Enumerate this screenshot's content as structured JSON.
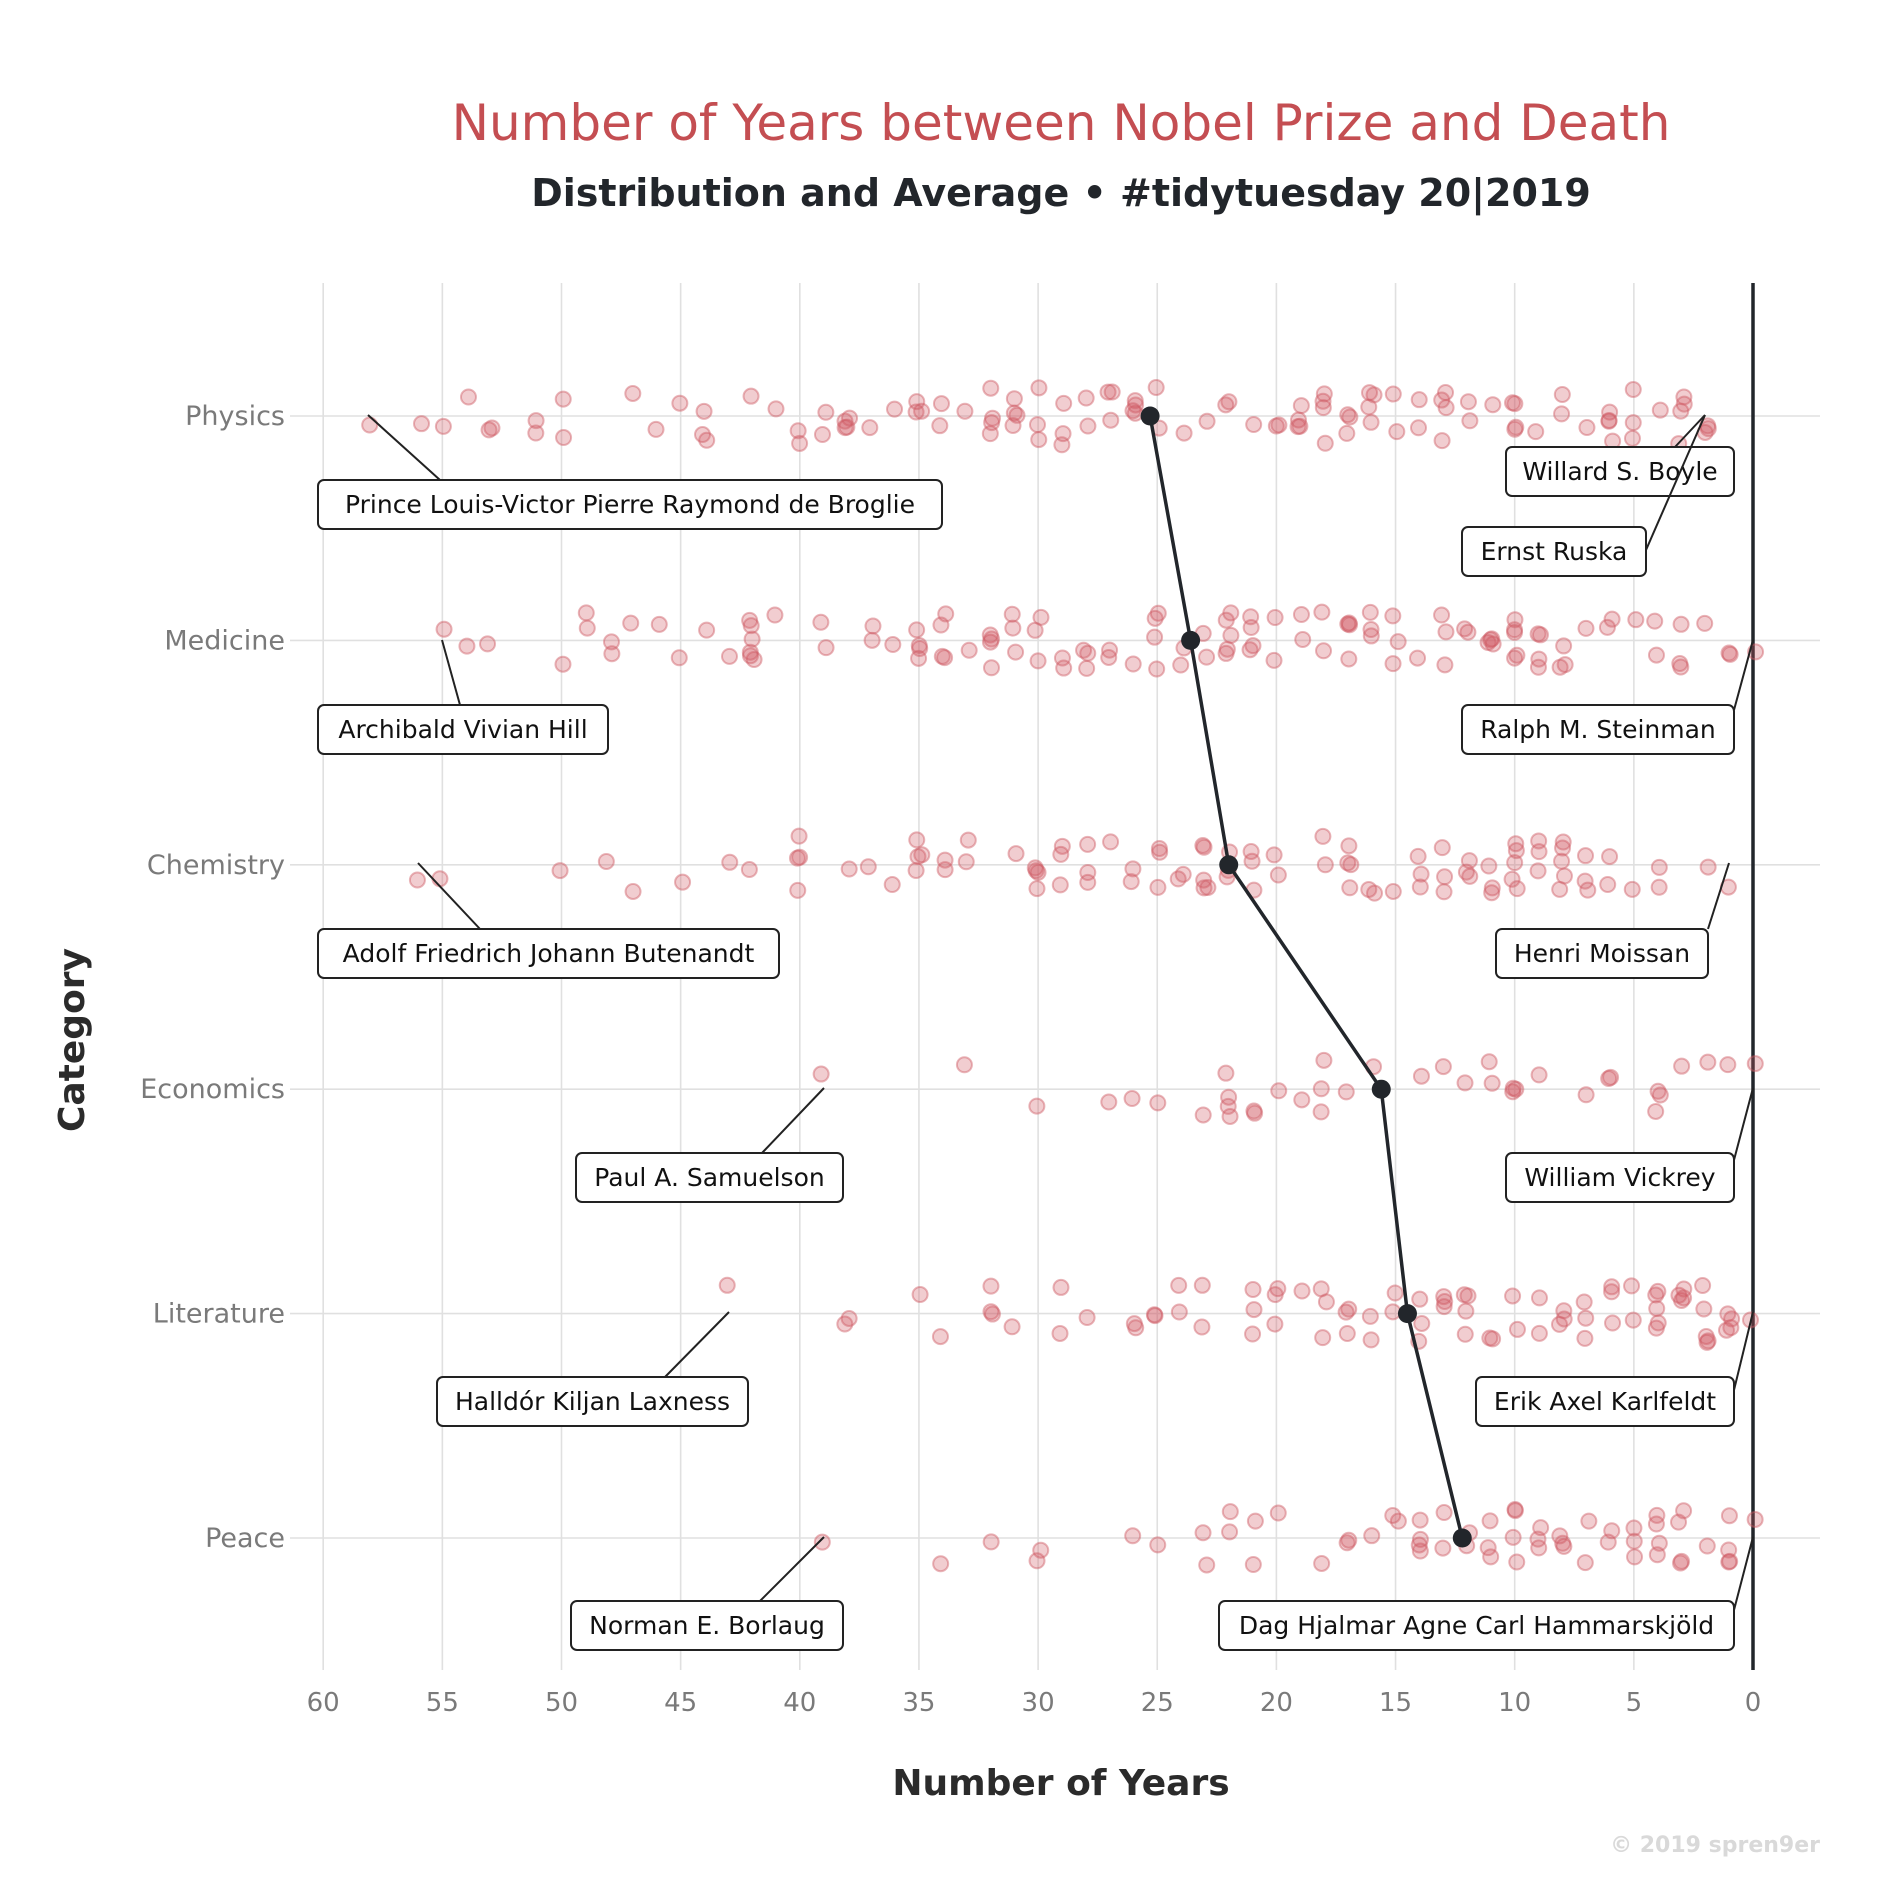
{
  "chart_data": {
    "type": "scatter",
    "title": "Number of Years between Nobel Prize and Death",
    "subtitle": "Distribution and Average • #tidytuesday 20|2019",
    "xlabel": "Number of Years",
    "ylabel": "Category",
    "caption": "© 2019 spren9er",
    "x_reversed": true,
    "xlim": [
      61,
      -3
    ],
    "x_ticks": [
      60,
      55,
      50,
      45,
      40,
      35,
      30,
      25,
      20,
      15,
      10,
      5,
      0
    ],
    "categories": [
      "Physics",
      "Medicine",
      "Chemistry",
      "Economics",
      "Literature",
      "Peace"
    ],
    "grid": true,
    "colors": {
      "points": "#cf5a64",
      "average": "#22262b",
      "labels": "#222222"
    },
    "average": {
      "Physics": 25.3,
      "Medicine": 23.6,
      "Chemistry": 22,
      "Economics": 15.6,
      "Literature": 14.5,
      "Peace": 12.2
    },
    "points": {
      "Physics": [
        58,
        56,
        55,
        54,
        53,
        53,
        51,
        51,
        50,
        50,
        47,
        46,
        45,
        44,
        44,
        44,
        42,
        41,
        40,
        40,
        39,
        39,
        38,
        38,
        38,
        38,
        37,
        36,
        35,
        35,
        35,
        34,
        34,
        33,
        32,
        32,
        32,
        32,
        31,
        31,
        31,
        31,
        30,
        30,
        30,
        29,
        29,
        29,
        28,
        28,
        27,
        27,
        27,
        26,
        26,
        26,
        26,
        25,
        25,
        24,
        23,
        22,
        22,
        21,
        20,
        20,
        19,
        19,
        19,
        19,
        18,
        18,
        18,
        18,
        17,
        17,
        17,
        16,
        16,
        16,
        16,
        15,
        15,
        14,
        14,
        13,
        13,
        13,
        13,
        12,
        12,
        11,
        10,
        10,
        10,
        10,
        9,
        8,
        8,
        7,
        6,
        6,
        6,
        6,
        5,
        5,
        5,
        4,
        3,
        3,
        3,
        3,
        2,
        2,
        2
      ],
      "Medicine": [
        55,
        54,
        53,
        50,
        49,
        49,
        48,
        48,
        47,
        46,
        45,
        44,
        43,
        42,
        42,
        42,
        42,
        42,
        42,
        41,
        39,
        39,
        37,
        37,
        36,
        35,
        35,
        35,
        35,
        34,
        34,
        34,
        34,
        33,
        32,
        32,
        32,
        32,
        31,
        31,
        31,
        30,
        30,
        30,
        29,
        29,
        28,
        28,
        28,
        27,
        27,
        26,
        25,
        25,
        25,
        25,
        24,
        24,
        23,
        23,
        22,
        22,
        22,
        22,
        22,
        21,
        21,
        21,
        21,
        20,
        20,
        19,
        19,
        18,
        18,
        17,
        17,
        17,
        17,
        16,
        16,
        16,
        15,
        15,
        15,
        14,
        13,
        13,
        13,
        12,
        12,
        11,
        11,
        11,
        11,
        10,
        10,
        10,
        10,
        10,
        9,
        9,
        9,
        9,
        8,
        8,
        8,
        7,
        6,
        6,
        5,
        4,
        4,
        3,
        3,
        3,
        2,
        1,
        1,
        0
      ],
      "Chemistry": [
        56,
        55,
        50,
        48,
        47,
        45,
        43,
        42,
        40,
        40,
        40,
        40,
        38,
        37,
        36,
        35,
        35,
        35,
        35,
        34,
        34,
        33,
        33,
        31,
        30,
        30,
        30,
        30,
        29,
        29,
        29,
        28,
        28,
        28,
        27,
        26,
        26,
        25,
        25,
        25,
        24,
        24,
        23,
        23,
        23,
        23,
        23,
        22,
        22,
        22,
        21,
        21,
        21,
        20,
        20,
        18,
        18,
        17,
        17,
        17,
        17,
        16,
        16,
        15,
        14,
        14,
        14,
        13,
        13,
        13,
        12,
        12,
        12,
        11,
        11,
        11,
        10,
        10,
        10,
        10,
        10,
        9,
        9,
        9,
        8,
        8,
        8,
        8,
        8,
        7,
        7,
        7,
        6,
        6,
        5,
        4,
        4,
        2,
        1
      ],
      "Economics": [
        39,
        33,
        30,
        27,
        26,
        25,
        23,
        22,
        22,
        22,
        22,
        21,
        21,
        20,
        19,
        18,
        18,
        18,
        17,
        16,
        14,
        13,
        12,
        11,
        11,
        10,
        10,
        10,
        9,
        7,
        6,
        6,
        4,
        4,
        4,
        3,
        2,
        1,
        0
      ],
      "Literature": [
        43,
        38,
        38,
        35,
        34,
        32,
        32,
        32,
        31,
        29,
        29,
        28,
        26,
        26,
        25,
        25,
        24,
        24,
        23,
        23,
        21,
        21,
        21,
        20,
        20,
        20,
        19,
        18,
        18,
        18,
        17,
        17,
        17,
        16,
        16,
        15,
        15,
        14,
        14,
        14,
        13,
        13,
        13,
        12,
        12,
        12,
        12,
        11,
        11,
        10,
        10,
        9,
        9,
        8,
        8,
        8,
        7,
        7,
        7,
        6,
        6,
        6,
        5,
        5,
        4,
        4,
        4,
        4,
        4,
        3,
        3,
        3,
        3,
        2,
        2,
        2,
        2,
        2,
        1,
        1,
        1,
        1,
        0
      ],
      "Peace": [
        39,
        34,
        32,
        30,
        30,
        26,
        25,
        23,
        23,
        22,
        22,
        21,
        21,
        20,
        18,
        17,
        17,
        16,
        15,
        15,
        14,
        14,
        14,
        14,
        13,
        13,
        12,
        12,
        11,
        11,
        11,
        10,
        10,
        10,
        10,
        9,
        9,
        9,
        8,
        8,
        8,
        7,
        7,
        6,
        6,
        5,
        5,
        5,
        4,
        4,
        4,
        4,
        3,
        3,
        3,
        3,
        2,
        1,
        1,
        1,
        1,
        0
      ]
    },
    "annotations": [
      {
        "category": "Physics",
        "x": 58,
        "label": "Prince Louis-Victor Pierre Raymond de Broglie"
      },
      {
        "category": "Physics",
        "x": 2,
        "label": "Willard S. Boyle"
      },
      {
        "category": "Physics",
        "x": 2,
        "label": "Ernst Ruska"
      },
      {
        "category": "Medicine",
        "x": 55,
        "label": "Archibald Vivian Hill"
      },
      {
        "category": "Medicine",
        "x": 0,
        "label": "Ralph M. Steinman"
      },
      {
        "category": "Chemistry",
        "x": 56,
        "label": "Adolf Friedrich Johann Butenandt"
      },
      {
        "category": "Chemistry",
        "x": 1,
        "label": "Henri Moissan"
      },
      {
        "category": "Economics",
        "x": 39,
        "label": "Paul A. Samuelson"
      },
      {
        "category": "Economics",
        "x": 0,
        "label": "William Vickrey"
      },
      {
        "category": "Literature",
        "x": 43,
        "label": "Halldór Kiljan Laxness"
      },
      {
        "category": "Literature",
        "x": 0,
        "label": "Erik Axel Karlfeldt"
      },
      {
        "category": "Peace",
        "x": 39,
        "label": "Norman E. Borlaug"
      },
      {
        "category": "Peace",
        "x": 0,
        "label": "Dag Hjalmar Agne Carl Hammarskjöld"
      }
    ]
  }
}
